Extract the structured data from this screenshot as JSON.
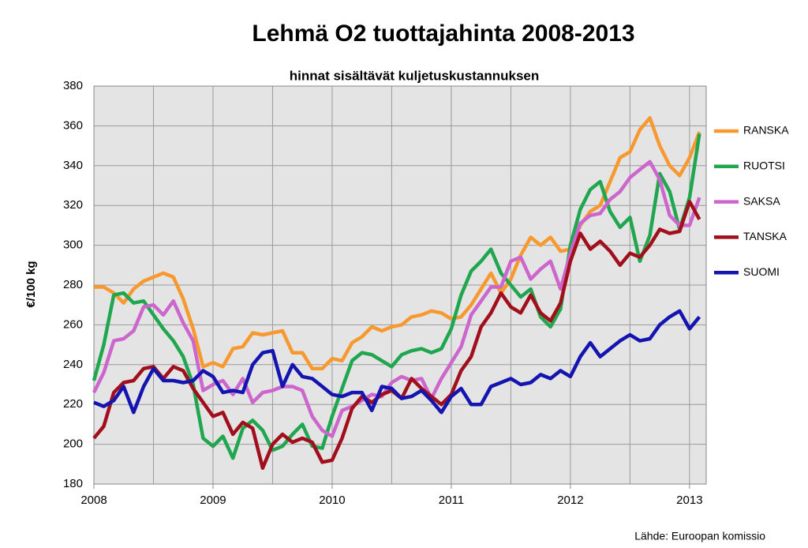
{
  "chart_data": {
    "type": "line",
    "title": "Lehmä O2 tuottajahinta 2008-2013",
    "subtitle": "hinnat sisältävät kuljetuskustannuksen",
    "y_label": "€/100 kg",
    "source": "Lähde: Euroopan komissio",
    "x": [
      2008,
      2008.083,
      2008.167,
      2008.25,
      2008.333,
      2008.417,
      2008.5,
      2008.583,
      2008.667,
      2008.75,
      2008.833,
      2008.917,
      2009,
      2009.083,
      2009.167,
      2009.25,
      2009.333,
      2009.417,
      2009.5,
      2009.583,
      2009.667,
      2009.75,
      2009.833,
      2009.917,
      2010,
      2010.083,
      2010.167,
      2010.25,
      2010.333,
      2010.417,
      2010.5,
      2010.583,
      2010.667,
      2010.75,
      2010.833,
      2010.917,
      2011,
      2011.083,
      2011.167,
      2011.25,
      2011.333,
      2011.417,
      2011.5,
      2011.583,
      2011.667,
      2011.75,
      2011.833,
      2011.917,
      2012,
      2012.083,
      2012.167,
      2012.25,
      2012.333,
      2012.417,
      2012.5,
      2012.583,
      2012.667,
      2012.75,
      2012.833,
      2012.917,
      2013,
      2013.083
    ],
    "xlim": [
      2008,
      2013.14
    ],
    "xticks": [
      2008,
      2009,
      2010,
      2011,
      2012,
      2013
    ],
    "ylim": [
      180,
      380
    ],
    "yticks": [
      180,
      200,
      220,
      240,
      260,
      280,
      300,
      320,
      340,
      360,
      380
    ],
    "grid": true,
    "legend": "right",
    "series": [
      {
        "name": "RANSKA",
        "color": "#f7992e",
        "values": [
          279,
          279,
          276,
          271,
          278,
          282,
          284,
          286,
          284,
          273,
          258,
          239,
          241,
          239,
          248,
          249,
          256,
          255,
          256,
          257,
          246,
          246,
          238,
          238,
          243,
          242,
          251,
          254,
          259,
          257,
          259,
          260,
          264,
          265,
          267,
          266,
          263,
          264,
          270,
          278,
          286,
          276,
          283,
          295,
          304,
          300,
          304,
          297,
          298,
          310,
          317,
          320,
          332,
          344,
          347,
          358,
          364,
          350,
          340,
          335,
          344,
          357
        ]
      },
      {
        "name": "RUOTSI",
        "color": "#1fa64f",
        "values": [
          232,
          250,
          275,
          276,
          271,
          272,
          265,
          258,
          252,
          244,
          230,
          203,
          199,
          204,
          193,
          208,
          212,
          207,
          197,
          199,
          205,
          210,
          199,
          198,
          214,
          228,
          242,
          246,
          245,
          242,
          239,
          245,
          247,
          248,
          246,
          248,
          258,
          275,
          287,
          292,
          298,
          286,
          280,
          274,
          278,
          264,
          259,
          268,
          300,
          318,
          328,
          332,
          317,
          309,
          314,
          292,
          305,
          336,
          327,
          308,
          324,
          356
        ]
      },
      {
        "name": "SAKSA",
        "color": "#cc66cc",
        "values": [
          226,
          236,
          252,
          253,
          257,
          269,
          270,
          265,
          272,
          261,
          252,
          227,
          230,
          232,
          225,
          233,
          221,
          226,
          227,
          229,
          229,
          227,
          214,
          207,
          204,
          217,
          219,
          222,
          225,
          224,
          231,
          234,
          232,
          233,
          223,
          233,
          241,
          249,
          265,
          272,
          279,
          279,
          292,
          294,
          283,
          288,
          292,
          278,
          296,
          311,
          315,
          316,
          323,
          327,
          334,
          338,
          342,
          333,
          315,
          310,
          310,
          324
        ]
      },
      {
        "name": "TANSKA",
        "color": "#a20f1c",
        "values": [
          203,
          209,
          226,
          231,
          232,
          238,
          239,
          233,
          239,
          237,
          228,
          221,
          214,
          216,
          205,
          211,
          208,
          188,
          200,
          205,
          201,
          203,
          201,
          191,
          192,
          203,
          218,
          224,
          221,
          225,
          227,
          223,
          233,
          228,
          224,
          220,
          225,
          237,
          244,
          259,
          266,
          276,
          269,
          266,
          275,
          266,
          262,
          271,
          292,
          306,
          298,
          302,
          297,
          290,
          296,
          294,
          300,
          308,
          306,
          307,
          322,
          313
        ]
      },
      {
        "name": "SUOMI",
        "color": "#1414b0",
        "values": [
          221,
          219,
          222,
          229,
          216,
          229,
          238,
          232,
          232,
          231,
          232,
          237,
          234,
          226,
          227,
          226,
          240,
          246,
          247,
          229,
          240,
          234,
          233,
          229,
          225,
          224,
          226,
          226,
          217,
          229,
          228,
          223,
          224,
          227,
          222,
          216,
          224,
          228,
          220,
          220,
          229,
          231,
          233,
          230,
          231,
          235,
          233,
          237,
          234,
          244,
          251,
          244,
          248,
          252,
          255,
          252,
          253,
          260,
          264,
          267,
          258,
          264
        ]
      }
    ]
  }
}
